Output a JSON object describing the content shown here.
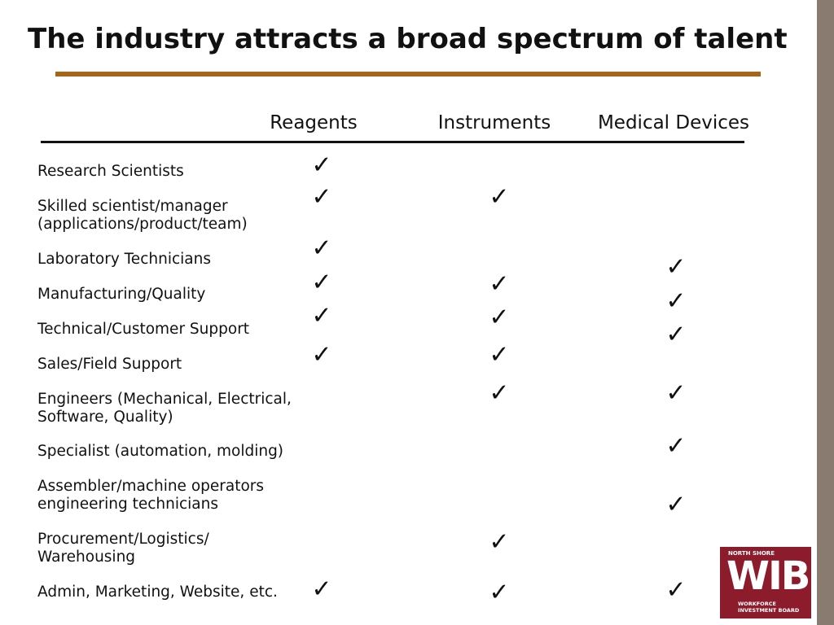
{
  "title": "The industry attracts a broad spectrum of talent",
  "columns": [
    "Reagents",
    "Instruments",
    "Medical Devices"
  ],
  "rows": [
    {
      "label": [
        "Research Scientists"
      ],
      "checks": [
        "✓",
        null,
        null
      ]
    },
    {
      "label": [
        "Skilled scientist/manager",
        "(applications/product/team)"
      ],
      "checks": [
        "✓",
        "✓",
        null
      ]
    },
    {
      "label": [
        "Laboratory Technicians"
      ],
      "checks": [
        "✓",
        null,
        "✓"
      ]
    },
    {
      "label": [
        "Manufacturing/Quality"
      ],
      "checks": [
        "✓",
        "✓",
        "✓"
      ]
    },
    {
      "label": [
        "Technical/Customer Support"
      ],
      "checks": [
        "✓",
        "✓",
        "✓"
      ]
    },
    {
      "label": [
        "Sales/Field Support"
      ],
      "checks": [
        "✓",
        "✓",
        null
      ]
    },
    {
      "label": [
        "Engineers (Mechanical, Electrical,",
        "Software, Quality)"
      ],
      "checks": [
        null,
        "✓",
        "✓"
      ]
    },
    {
      "label": [
        "Specialist (automation, molding)"
      ],
      "checks": [
        null,
        null,
        "✓"
      ]
    },
    {
      "label": [
        "Assembler/machine operators",
        "engineering technicians"
      ],
      "checks": [
        null,
        null,
        "✓"
      ]
    },
    {
      "label": [
        "Procurement/Logistics/",
        "Warehousing"
      ],
      "checks": [
        null,
        "✓",
        null
      ]
    },
    {
      "label": [
        "Admin, Marketing, Website, etc."
      ],
      "checks": [
        "✓",
        "✓",
        "✓"
      ]
    }
  ],
  "logo": {
    "top": "NORTH SHORE",
    "main": "WIB",
    "bottom": [
      "WORKFORCE",
      "INVESTMENT BOARD"
    ]
  }
}
